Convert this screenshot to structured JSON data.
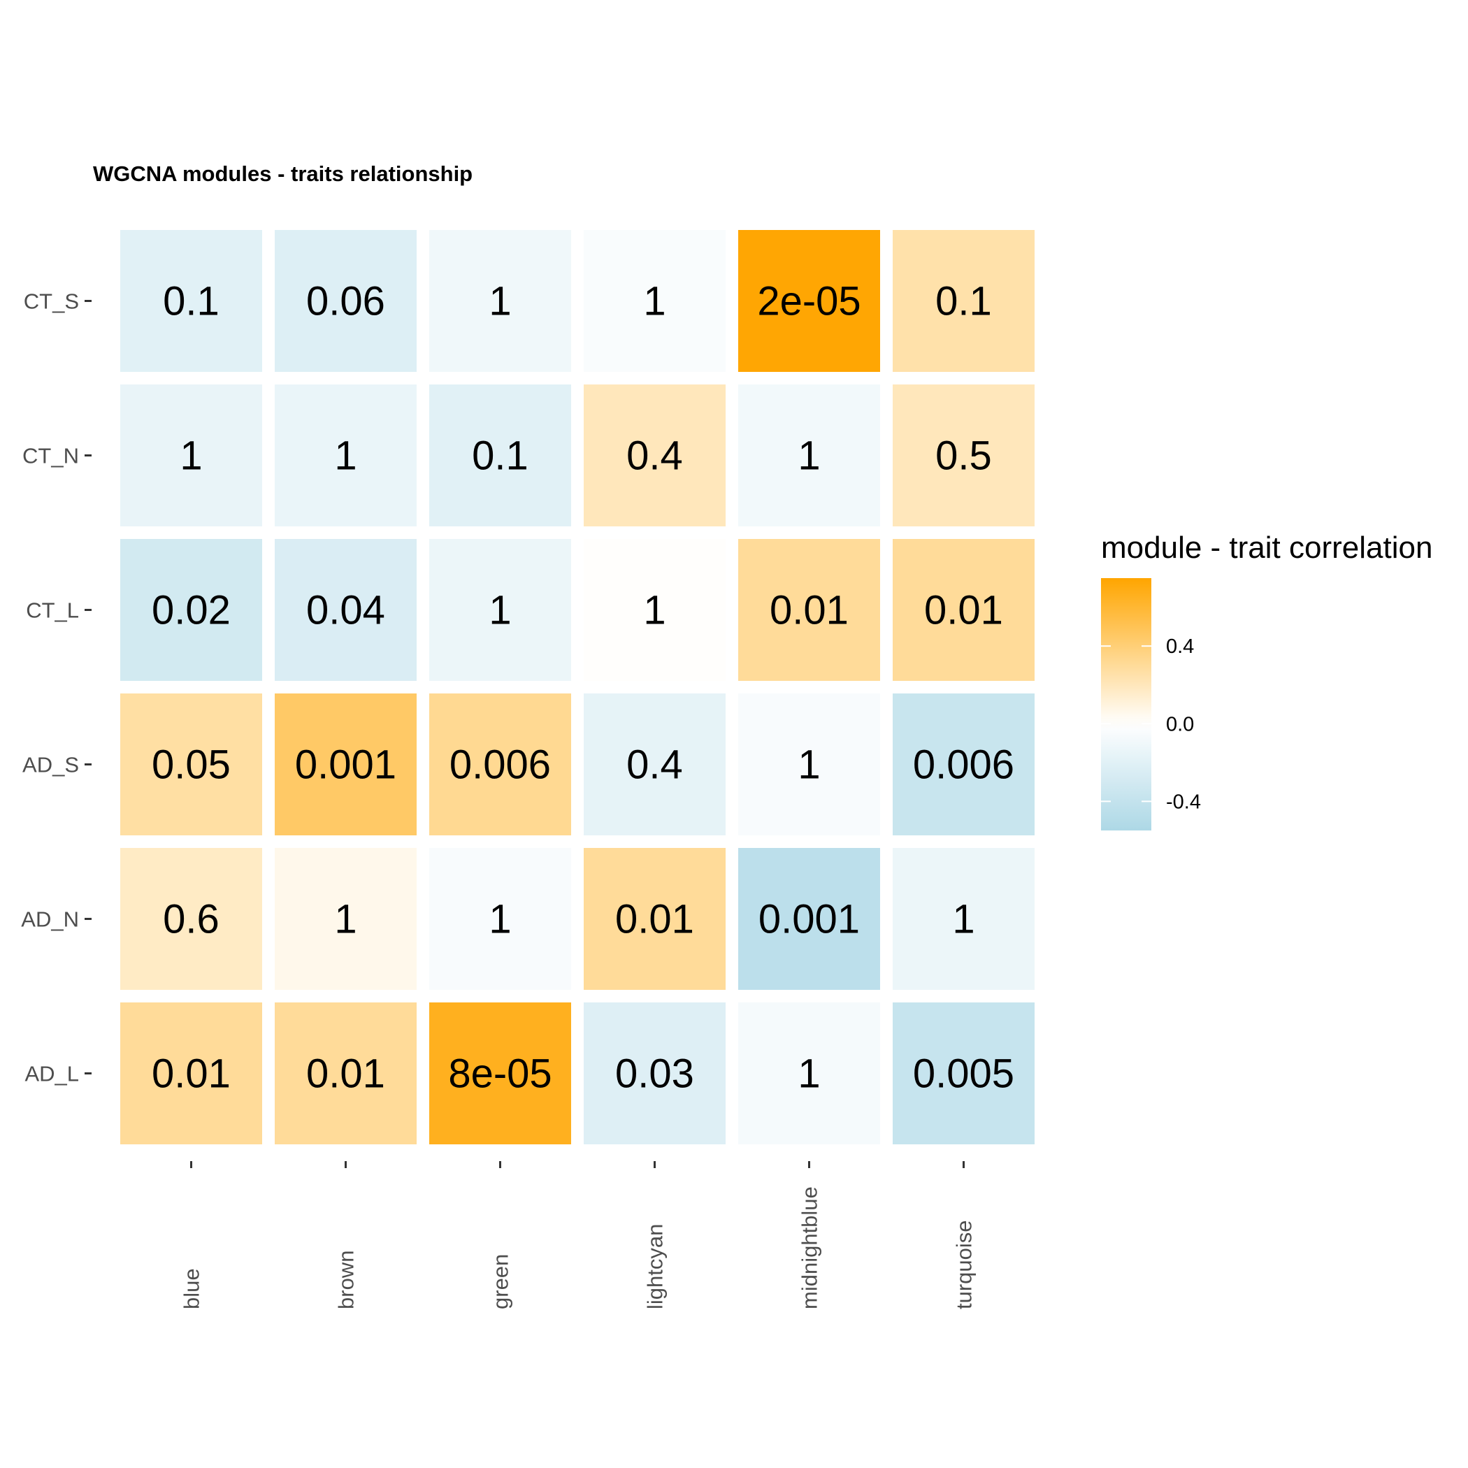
{
  "chart_data": {
    "type": "heatmap",
    "title": "WGCNA modules - traits relationship",
    "xlabel": "",
    "ylabel": "",
    "x_categories": [
      "blue",
      "brown",
      "green",
      "lightcyan",
      "midnightblue",
      "turquoise"
    ],
    "y_categories": [
      "CT_S",
      "CT_N",
      "CT_L",
      "AD_S",
      "AD_N",
      "AD_L"
    ],
    "cells": [
      {
        "row": "CT_S",
        "col": "blue",
        "value": -0.2,
        "label": "0.1"
      },
      {
        "row": "CT_S",
        "col": "brown",
        "value": -0.23,
        "label": "0.06"
      },
      {
        "row": "CT_S",
        "col": "green",
        "value": -0.1,
        "label": "1"
      },
      {
        "row": "CT_S",
        "col": "lightcyan",
        "value": -0.04,
        "label": "1"
      },
      {
        "row": "CT_S",
        "col": "midnightblue",
        "value": 0.74,
        "label": "2e-05"
      },
      {
        "row": "CT_S",
        "col": "turquoise",
        "value": 0.25,
        "label": "0.1"
      },
      {
        "row": "CT_N",
        "col": "blue",
        "value": -0.15,
        "label": "1"
      },
      {
        "row": "CT_N",
        "col": "brown",
        "value": -0.14,
        "label": "1"
      },
      {
        "row": "CT_N",
        "col": "green",
        "value": -0.2,
        "label": "0.1"
      },
      {
        "row": "CT_N",
        "col": "lightcyan",
        "value": 0.2,
        "label": "0.4"
      },
      {
        "row": "CT_N",
        "col": "midnightblue",
        "value": -0.09,
        "label": "1"
      },
      {
        "row": "CT_N",
        "col": "turquoise",
        "value": 0.2,
        "label": "0.5"
      },
      {
        "row": "CT_L",
        "col": "blue",
        "value": -0.3,
        "label": "0.02"
      },
      {
        "row": "CT_L",
        "col": "brown",
        "value": -0.25,
        "label": "0.04"
      },
      {
        "row": "CT_L",
        "col": "green",
        "value": -0.13,
        "label": "1"
      },
      {
        "row": "CT_L",
        "col": "lightcyan",
        "value": 0.01,
        "label": "1"
      },
      {
        "row": "CT_L",
        "col": "midnightblue",
        "value": 0.3,
        "label": "0.01"
      },
      {
        "row": "CT_L",
        "col": "turquoise",
        "value": 0.3,
        "label": "0.01"
      },
      {
        "row": "AD_S",
        "col": "blue",
        "value": 0.27,
        "label": "0.05"
      },
      {
        "row": "AD_S",
        "col": "brown",
        "value": 0.45,
        "label": "0.001"
      },
      {
        "row": "AD_S",
        "col": "green",
        "value": 0.32,
        "label": "0.006"
      },
      {
        "row": "AD_S",
        "col": "lightcyan",
        "value": -0.17,
        "label": "0.4"
      },
      {
        "row": "AD_S",
        "col": "midnightblue",
        "value": -0.05,
        "label": "1"
      },
      {
        "row": "AD_S",
        "col": "turquoise",
        "value": -0.37,
        "label": "0.006"
      },
      {
        "row": "AD_N",
        "col": "blue",
        "value": 0.17,
        "label": "0.6"
      },
      {
        "row": "AD_N",
        "col": "brown",
        "value": 0.06,
        "label": "1"
      },
      {
        "row": "AD_N",
        "col": "green",
        "value": -0.05,
        "label": "1"
      },
      {
        "row": "AD_N",
        "col": "lightcyan",
        "value": 0.3,
        "label": "0.01"
      },
      {
        "row": "AD_N",
        "col": "midnightblue",
        "value": -0.45,
        "label": "0.001"
      },
      {
        "row": "AD_N",
        "col": "turquoise",
        "value": -0.13,
        "label": "1"
      },
      {
        "row": "AD_L",
        "col": "blue",
        "value": 0.3,
        "label": "0.01"
      },
      {
        "row": "AD_L",
        "col": "brown",
        "value": 0.3,
        "label": "0.01"
      },
      {
        "row": "AD_L",
        "col": "green",
        "value": 0.66,
        "label": "8e-05"
      },
      {
        "row": "AD_L",
        "col": "lightcyan",
        "value": -0.22,
        "label": "0.03"
      },
      {
        "row": "AD_L",
        "col": "midnightblue",
        "value": -0.07,
        "label": "1"
      },
      {
        "row": "AD_L",
        "col": "turquoise",
        "value": -0.38,
        "label": "0.005"
      }
    ],
    "color_scale": {
      "low": "#add8e6",
      "mid": "#ffffff",
      "high": "#ffa500",
      "low_value": -0.55,
      "mid_value": 0.0,
      "high_value": 0.75
    },
    "legend": {
      "title": "module - trait correlation",
      "ticks": [
        0.4,
        0.0,
        -0.4
      ],
      "tick_labels": [
        "0.4",
        "0.0",
        "-0.4"
      ],
      "range": [
        -0.55,
        0.75
      ],
      "position": "right"
    },
    "grid": false
  }
}
